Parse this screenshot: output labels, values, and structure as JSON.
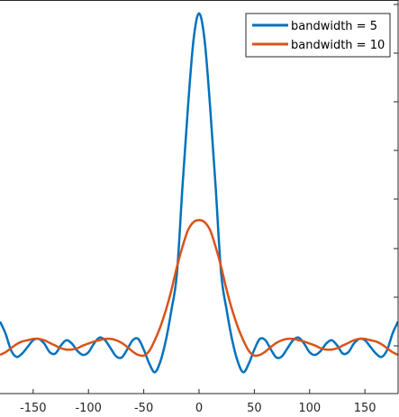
{
  "chart_data": {
    "type": "line",
    "title": "",
    "xlabel": "",
    "ylabel": "",
    "xlim": [
      -180,
      180
    ],
    "ylim": [
      -0.7,
      5.2
    ],
    "grid": false,
    "legend_position": "top-right",
    "x_ticks": [
      -150,
      -100,
      -50,
      0,
      50,
      100,
      150
    ],
    "x_tick_labels": [
      "-150",
      "-100",
      "-50",
      "0",
      "50",
      "100",
      "150"
    ],
    "series": [
      {
        "name": "bandwidth = 5",
        "color": "#0072BD",
        "x": [
          -180,
          -175,
          -170,
          -165,
          -160,
          -155,
          -150,
          -145,
          -140,
          -135,
          -130,
          -125,
          -120,
          -115,
          -110,
          -105,
          -100,
          -95,
          -90,
          -85,
          -80,
          -75,
          -70,
          -65,
          -60,
          -55,
          -50,
          -45,
          -40,
          -35,
          -30,
          -25,
          -20,
          -15,
          -10,
          -5,
          0,
          5,
          10,
          15,
          20,
          25,
          30,
          35,
          40,
          45,
          50,
          55,
          60,
          65,
          70,
          75,
          80,
          85,
          90,
          95,
          100,
          105,
          110,
          115,
          120,
          125,
          130,
          135,
          140,
          145,
          150,
          155,
          160,
          165,
          170,
          175,
          180
        ],
        "values": [
          0.38,
          0.2,
          -0.05,
          -0.15,
          -0.1,
          0.0,
          0.1,
          0.12,
          0.05,
          -0.08,
          -0.1,
          0.02,
          0.1,
          0.05,
          -0.06,
          -0.12,
          -0.08,
          0.05,
          0.14,
          0.1,
          -0.02,
          -0.14,
          -0.16,
          -0.04,
          0.1,
          0.12,
          -0.04,
          -0.25,
          -0.38,
          -0.22,
          0.1,
          0.55,
          1.1,
          2.4,
          3.6,
          4.6,
          5.0,
          4.6,
          3.6,
          2.4,
          1.1,
          0.55,
          0.1,
          -0.22,
          -0.38,
          -0.25,
          -0.04,
          0.12,
          0.1,
          -0.04,
          -0.16,
          -0.14,
          -0.02,
          0.1,
          0.14,
          0.05,
          -0.08,
          -0.12,
          -0.06,
          0.05,
          0.1,
          0.02,
          -0.1,
          -0.08,
          0.05,
          0.12,
          0.1,
          0.0,
          -0.1,
          -0.15,
          -0.05,
          0.2,
          0.38
        ]
      },
      {
        "name": "bandwidth = 10",
        "color": "#D95319",
        "x": [
          -180,
          -175,
          -170,
          -165,
          -160,
          -155,
          -150,
          -145,
          -140,
          -135,
          -130,
          -125,
          -120,
          -115,
          -110,
          -105,
          -100,
          -95,
          -90,
          -85,
          -80,
          -75,
          -70,
          -65,
          -60,
          -55,
          -50,
          -45,
          -40,
          -35,
          -30,
          -25,
          -20,
          -15,
          -10,
          -5,
          0,
          5,
          10,
          15,
          20,
          25,
          30,
          35,
          40,
          45,
          50,
          55,
          60,
          65,
          70,
          75,
          80,
          85,
          90,
          95,
          100,
          105,
          110,
          115,
          120,
          125,
          130,
          135,
          140,
          145,
          150,
          155,
          160,
          165,
          170,
          175,
          180
        ],
        "values": [
          -0.12,
          -0.08,
          -0.02,
          0.04,
          0.08,
          0.1,
          0.12,
          0.12,
          0.1,
          0.06,
          0.02,
          -0.02,
          -0.04,
          -0.04,
          -0.02,
          0.02,
          0.05,
          0.08,
          0.1,
          0.12,
          0.12,
          0.1,
          0.06,
          0.0,
          -0.07,
          -0.12,
          -0.13,
          -0.06,
          0.1,
          0.3,
          0.55,
          0.85,
          1.2,
          1.5,
          1.75,
          1.87,
          1.9,
          1.87,
          1.75,
          1.5,
          1.2,
          0.85,
          0.55,
          0.3,
          0.1,
          -0.06,
          -0.13,
          -0.12,
          -0.07,
          0.0,
          0.06,
          0.1,
          0.12,
          0.12,
          0.1,
          0.08,
          0.05,
          0.02,
          -0.02,
          -0.04,
          -0.04,
          -0.02,
          0.02,
          0.06,
          0.1,
          0.12,
          0.12,
          0.1,
          0.08,
          0.04,
          -0.02,
          -0.08,
          -0.12
        ]
      }
    ]
  }
}
